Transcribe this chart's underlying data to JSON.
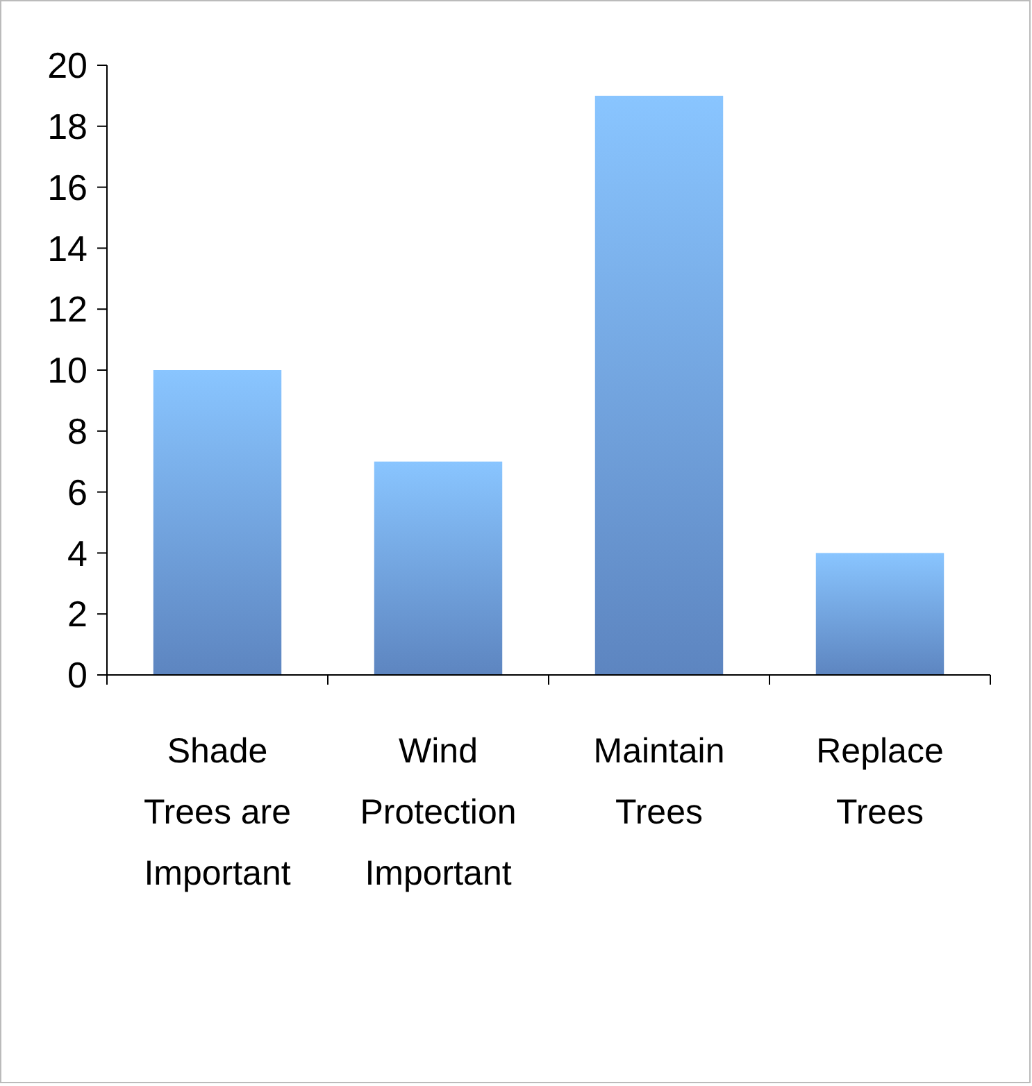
{
  "chart_data": {
    "type": "bar",
    "categories": [
      "Shade Trees are Important",
      "Wind Protection Important",
      "Maintain Trees",
      "Replace Trees"
    ],
    "values": [
      10,
      7,
      19,
      4
    ],
    "color": "#6f9fe6",
    "ylim": [
      0,
      20
    ],
    "yticks": [
      0,
      2,
      4,
      6,
      8,
      10,
      12,
      14,
      16,
      18,
      20
    ]
  }
}
